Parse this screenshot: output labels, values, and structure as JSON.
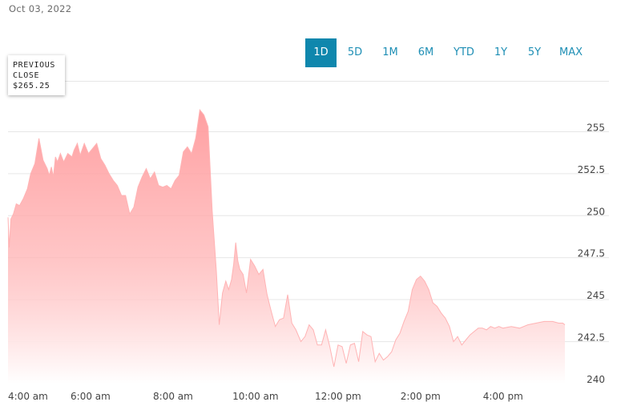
{
  "date_label": "Oct 03, 2022",
  "ranges": [
    "1D",
    "5D",
    "1M",
    "6M",
    "YTD",
    "1Y",
    "5Y",
    "MAX"
  ],
  "active_range": "1D",
  "previous_close": {
    "line1": "PREVIOUS",
    "line2": "CLOSE",
    "value": "$265.25"
  },
  "colors": {
    "area_top": "#ff9a9c",
    "area_bottom": "#ffffff",
    "line": "#ffb3b4",
    "accent": "#0f87ad",
    "grid": "#e6e6e6"
  },
  "chart_data": {
    "type": "area",
    "title": "",
    "xlabel": "",
    "ylabel": "",
    "ylim": [
      240,
      256.5
    ],
    "xlim": [
      4.0,
      17.5
    ],
    "y_ticks": [
      255,
      252.5,
      250,
      247.5,
      245,
      242.5,
      240
    ],
    "y_tick_labels": [
      "255",
      "252.5",
      "250",
      "247.5",
      "245",
      "242.5",
      "240"
    ],
    "x_ticks": [
      4,
      6,
      8,
      10,
      12,
      14,
      16
    ],
    "x_tick_labels": [
      "4:00 am",
      "6:00 am",
      "8:00 am",
      "10:00 am",
      "12:00 pm",
      "2:00 pm",
      "4:00 pm"
    ],
    "y_axis_position": "right",
    "grid": true,
    "series": [
      {
        "x": [
          4.0,
          4.03,
          4.07,
          4.13,
          4.2,
          4.28,
          4.37,
          4.47,
          4.55,
          4.65,
          4.75,
          4.85,
          4.95,
          5.0,
          5.05,
          5.1,
          5.15,
          5.2,
          5.27,
          5.35,
          5.45,
          5.55,
          5.6,
          5.68,
          5.75,
          5.85,
          5.95,
          6.05,
          6.15,
          6.25,
          6.35,
          6.45,
          6.55,
          6.65,
          6.75,
          6.85,
          6.95,
          7.05,
          7.15,
          7.25,
          7.35,
          7.45,
          7.55,
          7.65,
          7.75,
          7.85,
          7.95,
          8.05,
          8.15,
          8.25,
          8.35,
          8.45,
          8.55,
          8.65,
          8.75,
          8.85,
          8.95,
          9.05,
          9.12,
          9.2,
          9.28,
          9.35,
          9.42,
          9.47,
          9.52,
          9.57,
          9.62,
          9.7,
          9.78,
          9.88,
          9.98,
          10.08,
          10.18,
          10.28,
          10.38,
          10.48,
          10.58,
          10.68,
          10.78,
          10.88,
          10.98,
          11.1,
          11.2,
          11.3,
          11.4,
          11.5,
          11.6,
          11.7,
          11.8,
          11.9,
          12.0,
          12.1,
          12.2,
          12.3,
          12.4,
          12.5,
          12.6,
          12.7,
          12.8,
          12.9,
          13.0,
          13.1,
          13.2,
          13.3,
          13.4,
          13.5,
          13.6,
          13.7,
          13.8,
          13.9,
          14.0,
          14.1,
          14.2,
          14.3,
          14.4,
          14.5,
          14.6,
          14.7,
          14.8,
          14.9,
          15.0,
          15.1,
          15.2,
          15.3,
          15.4,
          15.5,
          15.6,
          15.7,
          15.8,
          15.9,
          16.0,
          16.2,
          16.4,
          16.6,
          16.8,
          17.0,
          17.2,
          17.35,
          17.45,
          17.5
        ],
        "y": [
          249.9,
          248.1,
          249.8,
          250.1,
          250.7,
          250.6,
          251.0,
          251.6,
          252.5,
          253.1,
          254.6,
          253.3,
          252.8,
          252.4,
          252.9,
          252.3,
          253.5,
          253.2,
          253.7,
          253.2,
          253.7,
          253.5,
          253.9,
          254.3,
          253.6,
          254.3,
          253.7,
          254.0,
          254.3,
          253.4,
          253.0,
          252.5,
          252.1,
          251.8,
          251.2,
          251.2,
          250.1,
          250.5,
          251.7,
          252.3,
          252.8,
          252.2,
          252.6,
          251.8,
          251.7,
          251.8,
          251.6,
          252.1,
          252.4,
          253.8,
          254.1,
          253.7,
          254.6,
          256.3,
          256.0,
          255.3,
          250.3,
          246.7,
          243.5,
          245.4,
          246.1,
          245.6,
          246.2,
          247.1,
          248.4,
          247.3,
          246.8,
          246.5,
          245.4,
          247.4,
          247.0,
          246.5,
          246.8,
          245.3,
          244.3,
          243.4,
          243.8,
          243.9,
          245.3,
          243.6,
          243.2,
          242.5,
          242.8,
          243.5,
          243.2,
          242.3,
          242.3,
          243.2,
          242.2,
          241.0,
          242.3,
          242.2,
          241.2,
          242.3,
          242.4,
          241.3,
          243.1,
          242.9,
          242.8,
          241.3,
          241.8,
          241.4,
          241.6,
          241.9,
          242.6,
          243.0,
          243.7,
          244.3,
          245.6,
          246.2,
          246.4,
          246.1,
          245.6,
          244.8,
          244.6,
          244.2,
          243.9,
          243.4,
          242.5,
          242.8,
          242.3,
          242.6,
          242.9,
          243.1,
          243.3,
          243.3,
          243.2,
          243.4,
          243.3,
          243.4,
          243.3,
          243.4,
          243.3,
          243.5,
          243.6,
          243.7,
          243.7,
          243.6,
          243.6,
          243.5
        ]
      }
    ]
  }
}
